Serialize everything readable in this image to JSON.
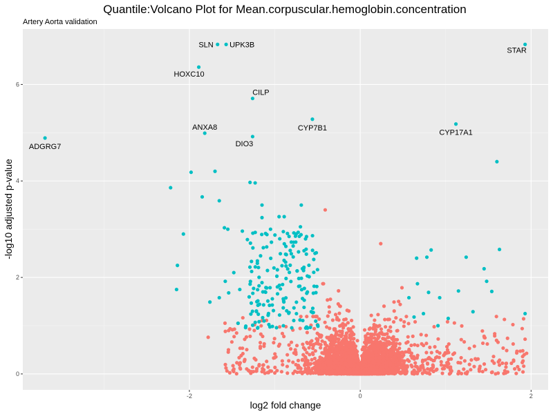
{
  "chart_data": {
    "type": "scatter",
    "title": "Quantile:Volcano Plot for Mean.corpuscular.hemoglobin.concentration",
    "subtitle": "Artery Aorta validation",
    "xlabel": "log2 fold change",
    "ylabel": "-log10 adjusted p-value",
    "xlim": [
      -3.95,
      2.2
    ],
    "ylim": [
      -0.33,
      7.15
    ],
    "xticks": [
      -2,
      0,
      2
    ],
    "xtick_labels": [
      "-2",
      "0",
      "2"
    ],
    "yticks": [
      0,
      2,
      4,
      6
    ],
    "ytick_labels": [
      "0",
      "2",
      "4",
      "6"
    ],
    "grid": true,
    "colors": {
      "significant": "#00BFC4",
      "not_significant": "#F8766D",
      "panel": "#EBEBEB",
      "grid": "#FFFFFF"
    },
    "labeled_points": [
      {
        "gene": "STAR",
        "x": 1.93,
        "y": 6.83,
        "label_side": "below-left"
      },
      {
        "gene": "SLN",
        "x": -1.67,
        "y": 6.83,
        "label_side": "left"
      },
      {
        "gene": "UPK3B",
        "x": -1.57,
        "y": 6.83,
        "label_side": "right"
      },
      {
        "gene": "HOXC10",
        "x": -1.89,
        "y": 6.36,
        "label_side": "below-left"
      },
      {
        "gene": "CILP",
        "x": -1.26,
        "y": 5.71,
        "label_side": "above-right"
      },
      {
        "gene": "CYP7B1",
        "x": -0.56,
        "y": 5.28,
        "label_side": "below"
      },
      {
        "gene": "CYP17A1",
        "x": 1.12,
        "y": 5.18,
        "label_side": "below"
      },
      {
        "gene": "ANXA8",
        "x": -1.82,
        "y": 4.99,
        "label_side": "above"
      },
      {
        "gene": "DIO3",
        "x": -1.26,
        "y": 4.92,
        "label_side": "below-left"
      },
      {
        "gene": "ADGRG7",
        "x": -3.69,
        "y": 4.89,
        "label_side": "below"
      }
    ],
    "significant_points": [
      [
        1.6,
        4.4
      ],
      [
        -1.98,
        4.18
      ],
      [
        -1.7,
        4.2
      ],
      [
        -2.22,
        3.86
      ],
      [
        -1.29,
        3.97
      ],
      [
        -1.23,
        3.96
      ],
      [
        -1.85,
        3.67
      ],
      [
        -1.65,
        3.59
      ],
      [
        -1.15,
        3.5
      ],
      [
        -0.69,
        3.5
      ],
      [
        -1.15,
        3.24
      ],
      [
        -0.95,
        3.26
      ],
      [
        -0.89,
        3.26
      ],
      [
        -2.07,
        2.9
      ],
      [
        -1.59,
        3.03
      ],
      [
        -1.55,
        3.0
      ],
      [
        -1.38,
        2.96
      ],
      [
        1.63,
        2.58
      ],
      [
        1.24,
        2.42
      ],
      [
        -2.14,
        2.25
      ],
      [
        1.45,
        2.18
      ],
      [
        1.48,
        1.92
      ],
      [
        -2.15,
        1.75
      ],
      [
        1.54,
        1.71
      ],
      [
        1.15,
        1.72
      ],
      [
        1.32,
        1.29
      ],
      [
        1.93,
        1.25
      ],
      [
        1.03,
        1.15
      ],
      [
        0.93,
        1.58
      ],
      [
        0.57,
        1.58
      ],
      [
        0.63,
        1.18
      ],
      [
        0.74,
        1.25
      ],
      [
        -1.76,
        1.49
      ],
      [
        -1.65,
        1.58
      ],
      [
        -1.54,
        1.68
      ],
      [
        -1.41,
        1.75
      ],
      [
        0.67,
        1.87
      ],
      [
        0.8,
        1.69
      ],
      [
        0.83,
        2.57
      ],
      [
        0.78,
        2.42
      ],
      [
        0.66,
        2.4
      ],
      [
        0.91,
        1.0
      ],
      [
        -1.58,
        1.92
      ],
      [
        -1.48,
        2.1
      ],
      [
        -1.43,
        1.05
      ],
      [
        -1.05,
        3.0
      ],
      [
        -0.7,
        3.05
      ],
      [
        -0.64,
        2.8
      ],
      [
        -0.9,
        2.95
      ],
      [
        -0.75,
        2.9
      ]
    ],
    "significant_cluster": {
      "n": 170,
      "seed": 7,
      "x_range": [
        -1.35,
        -0.48
      ],
      "y_range": [
        0.95,
        2.95
      ]
    },
    "not_significant_cloud": {
      "n": 4200,
      "seed": 42,
      "x_sd": 0.22,
      "tail_fraction": 0.12,
      "tail_x_range": [
        -1.6,
        1.95
      ],
      "y_scale": 0.55,
      "y_max": 3.4
    },
    "not_significant_points": [
      [
        -0.41,
        3.4
      ],
      [
        0.24,
        2.7
      ],
      [
        1.93,
        0.72
      ],
      [
        1.45,
        0.78
      ],
      [
        1.43,
        0.89
      ],
      [
        -1.78,
        0.76
      ],
      [
        -1.54,
        0.9
      ]
    ]
  }
}
